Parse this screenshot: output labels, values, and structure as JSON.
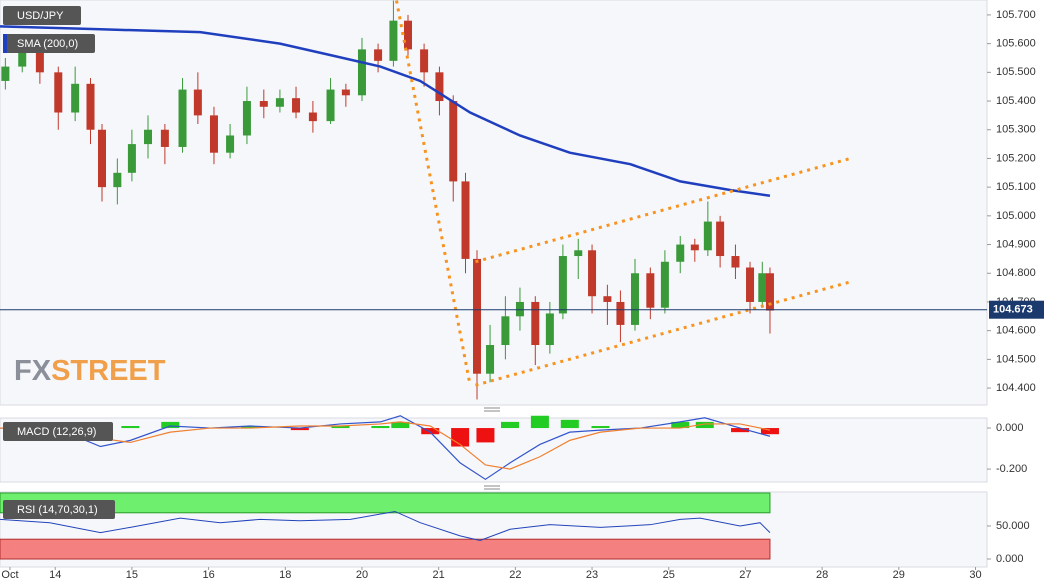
{
  "chart_data": [
    {
      "type": "candlestick",
      "title": "USD/JPY",
      "x": [
        -0.65,
        -0.43,
        -0.2,
        0.04,
        0.26,
        0.46,
        0.61,
        0.81,
        1.0,
        1.21,
        1.43,
        1.66,
        1.86,
        2.07,
        2.28,
        2.5,
        2.72,
        2.93,
        3.14,
        3.36,
        3.59,
        3.79,
        4.0,
        4.21,
        4.41,
        4.6,
        4.81,
        5.01,
        5.19,
        5.35,
        5.5,
        5.67,
        5.87,
        6.06,
        6.26,
        6.45,
        6.62,
        6.82,
        7.0,
        7.2,
        7.37,
        7.56,
        7.76,
        7.95,
        8.15,
        8.34,
        8.51,
        8.67,
        8.87,
        9.06,
        9.22,
        9.32
      ],
      "open": [
        105.47,
        105.52,
        105.58,
        105.5,
        105.36,
        105.46,
        105.3,
        105.1,
        105.15,
        105.25,
        105.3,
        105.24,
        105.44,
        105.35,
        105.22,
        105.28,
        105.4,
        105.38,
        105.41,
        105.36,
        105.33,
        105.44,
        105.42,
        105.58,
        105.54,
        105.68,
        105.58,
        105.5,
        105.4,
        105.12,
        104.85,
        104.45,
        104.55,
        104.65,
        104.7,
        104.55,
        104.66,
        104.86,
        104.88,
        104.72,
        104.7,
        104.62,
        104.8,
        104.68,
        104.84,
        104.9,
        104.88,
        104.98,
        104.86,
        104.82,
        104.7,
        104.8
      ],
      "high": [
        105.55,
        105.62,
        105.6,
        105.52,
        105.52,
        105.48,
        105.32,
        105.2,
        105.3,
        105.35,
        105.32,
        105.48,
        105.5,
        105.38,
        105.32,
        105.45,
        105.44,
        105.44,
        105.45,
        105.4,
        105.48,
        105.46,
        105.62,
        105.6,
        105.75,
        105.7,
        105.6,
        105.52,
        105.42,
        105.15,
        104.88,
        104.62,
        104.72,
        104.75,
        104.72,
        104.7,
        104.9,
        104.92,
        104.9,
        104.76,
        104.74,
        104.85,
        104.82,
        104.88,
        104.93,
        104.92,
        105.05,
        105.0,
        104.9,
        104.84,
        104.84,
        104.82
      ],
      "low": [
        105.44,
        105.5,
        105.46,
        105.3,
        105.33,
        105.25,
        105.05,
        105.04,
        105.12,
        105.2,
        105.18,
        105.22,
        105.32,
        105.18,
        105.2,
        105.25,
        105.34,
        105.36,
        105.34,
        105.29,
        105.32,
        105.38,
        105.4,
        105.5,
        105.52,
        105.55,
        105.45,
        105.35,
        105.05,
        104.8,
        104.36,
        104.42,
        104.5,
        104.6,
        104.48,
        104.52,
        104.64,
        104.78,
        104.66,
        104.62,
        104.56,
        104.6,
        104.64,
        104.66,
        104.8,
        104.84,
        104.86,
        104.82,
        104.78,
        104.66,
        104.68,
        104.59
      ],
      "close": [
        105.52,
        105.58,
        105.5,
        105.36,
        105.46,
        105.3,
        105.1,
        105.15,
        105.25,
        105.3,
        105.24,
        105.44,
        105.35,
        105.22,
        105.28,
        105.4,
        105.38,
        105.41,
        105.36,
        105.33,
        105.44,
        105.42,
        105.58,
        105.54,
        105.68,
        105.58,
        105.5,
        105.4,
        105.12,
        104.85,
        104.45,
        104.55,
        104.65,
        104.7,
        104.55,
        104.66,
        104.86,
        104.88,
        104.72,
        104.7,
        104.62,
        104.8,
        104.68,
        104.84,
        104.9,
        104.88,
        104.98,
        104.86,
        104.82,
        104.7,
        104.8,
        104.67
      ],
      "up_color": "#3a9a3a",
      "down_color": "#c0392b",
      "overlays": [
        {
          "name": "SMA (200,0)",
          "color": "#1f3fbf",
          "x": [
            -0.72,
            0.59,
            1.89,
            2.93,
            3.59,
            4.24,
            4.76,
            5.41,
            6.06,
            6.71,
            7.5,
            8.15,
            8.8,
            9.32
          ],
          "values": [
            105.66,
            105.65,
            105.64,
            105.6,
            105.56,
            105.52,
            105.47,
            105.36,
            105.28,
            105.22,
            105.18,
            105.12,
            105.09,
            105.07
          ]
        }
      ],
      "trendlines": [
        {
          "x": [
            4.45,
            5.41
          ],
          "y": [
            105.75,
            104.41
          ]
        },
        {
          "x": [
            5.48,
            10.37
          ],
          "y": [
            104.84,
            105.2
          ]
        },
        {
          "x": [
            5.48,
            10.37
          ],
          "y": [
            104.41,
            104.77
          ]
        }
      ],
      "trendline_color": "#f7931e",
      "last_price": 104.673,
      "last_price_color": "#1a3a6e",
      "watermark": [
        "FX",
        "STREET"
      ],
      "xlim": [
        -0.72,
        12.15
      ],
      "ylim": [
        104.341,
        105.752
      ],
      "yticks": [
        {
          "value": 104.4,
          "label": "104.400"
        },
        {
          "value": 104.5,
          "label": "104.500"
        },
        {
          "value": 104.6,
          "label": "104.600"
        },
        {
          "value": 104.7,
          "label": "104.700"
        },
        {
          "value": 104.8,
          "label": "104.800"
        },
        {
          "value": 104.9,
          "label": "104.900"
        },
        {
          "value": 105.0,
          "label": "105.000"
        },
        {
          "value": 105.1,
          "label": "105.100"
        },
        {
          "value": 105.2,
          "label": "105.200"
        },
        {
          "value": 105.3,
          "label": "105.300"
        },
        {
          "value": 105.4,
          "label": "105.400"
        },
        {
          "value": 105.5,
          "label": "105.500"
        },
        {
          "value": 105.6,
          "label": "105.600"
        },
        {
          "value": 105.7,
          "label": "105.700"
        }
      ]
    },
    {
      "type": "macd",
      "title": "MACD (12,26,9)",
      "x": [
        -0.72,
        0.07,
        0.59,
        0.98,
        1.5,
        2.02,
        2.54,
        3.19,
        3.72,
        4.24,
        4.5,
        4.89,
        5.28,
        5.61,
        5.93,
        6.32,
        6.71,
        7.11,
        7.63,
        8.15,
        8.47,
        8.93,
        9.32
      ],
      "macd": [
        0.0,
        -0.01,
        -0.09,
        -0.06,
        0.01,
        0.0,
        0.01,
        0.0,
        0.02,
        0.03,
        0.06,
        -0.02,
        -0.17,
        -0.25,
        -0.17,
        -0.08,
        -0.02,
        -0.01,
        0.0,
        0.03,
        0.05,
        0.0,
        -0.04
      ],
      "signal": [
        0.0,
        -0.005,
        -0.05,
        -0.07,
        -0.02,
        0.0,
        0.0,
        0.01,
        0.01,
        0.02,
        0.03,
        0.01,
        -0.08,
        -0.18,
        -0.2,
        -0.14,
        -0.06,
        -0.02,
        0.0,
        0.0,
        0.02,
        0.02,
        -0.01
      ],
      "histogram": [
        0,
        -0.005,
        -0.04,
        0.01,
        0.03,
        0,
        0.01,
        -0.01,
        0.01,
        0.01,
        0.03,
        -0.03,
        -0.09,
        -0.07,
        0.03,
        0.06,
        0.04,
        0.01,
        0,
        0.03,
        0.03,
        -0.02,
        -0.03
      ],
      "macd_color": "#3355cc",
      "signal_color": "#f08030",
      "positive_color": "#22cc22",
      "negative_color": "#ee1111",
      "xlim": [
        -0.72,
        12.15
      ],
      "ylim": [
        -0.263,
        0.049
      ],
      "yticks": [
        {
          "value": 0,
          "label": "0.000"
        },
        {
          "value": -0.2,
          "label": "-0.200"
        }
      ]
    },
    {
      "type": "rsi",
      "title": "RSI (14,70,30,1)",
      "x": [
        -0.72,
        -0.07,
        0.59,
        0.98,
        1.63,
        2.15,
        2.67,
        3.19,
        3.85,
        4.43,
        4.76,
        5.28,
        5.54,
        5.93,
        6.45,
        7.11,
        7.76,
        8.15,
        8.41,
        8.93,
        9.19,
        9.32
      ],
      "values": [
        60,
        55,
        40,
        48,
        62,
        55,
        60,
        58,
        60,
        72,
        55,
        35,
        28,
        45,
        52,
        48,
        52,
        60,
        62,
        50,
        55,
        40
      ],
      "color": "#2244bb",
      "overbought": [
        70,
        100
      ],
      "oversold": [
        0,
        30
      ],
      "overbought_color": "#6ef06e",
      "oversold_color": "#f58080",
      "xlim": [
        -0.72,
        12.15
      ],
      "ylim": [
        -12.1,
        101.5
      ],
      "yticks": [
        {
          "value": 50,
          "label": "50.000"
        },
        {
          "value": 0,
          "label": "0.000"
        }
      ],
      "xticks": [
        {
          "value": -0.59,
          "label": "Oct"
        },
        {
          "value": 0,
          "label": "14"
        },
        {
          "value": 1,
          "label": "15"
        },
        {
          "value": 2,
          "label": "16"
        },
        {
          "value": 3,
          "label": "18"
        },
        {
          "value": 4,
          "label": "20"
        },
        {
          "value": 5,
          "label": "21"
        },
        {
          "value": 6,
          "label": "22"
        },
        {
          "value": 7,
          "label": "23"
        },
        {
          "value": 8,
          "label": "25"
        },
        {
          "value": 9,
          "label": "27"
        },
        {
          "value": 10,
          "label": "28"
        },
        {
          "value": 11,
          "label": "29"
        },
        {
          "value": 12,
          "label": "30"
        }
      ]
    }
  ]
}
